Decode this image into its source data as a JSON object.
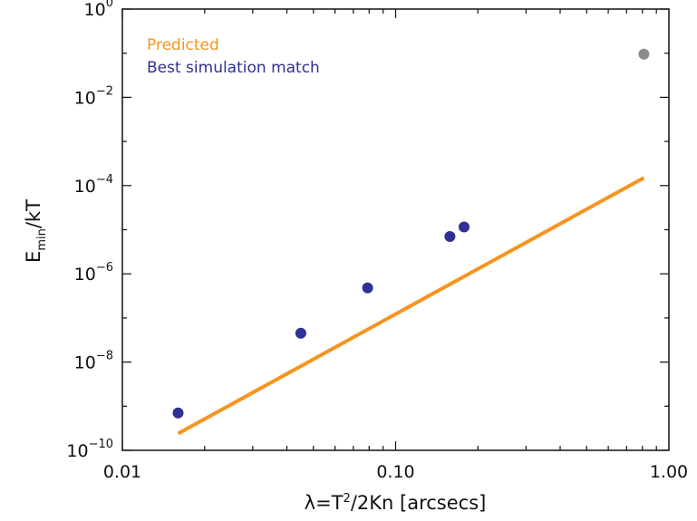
{
  "chart_data": {
    "type": "scatter",
    "x_scale": "log",
    "y_scale": "log",
    "xlim": [
      0.01,
      1.0
    ],
    "ylim": [
      1e-10,
      1.0
    ],
    "x_ticks": [
      {
        "value": 0.01,
        "label": "0.01"
      },
      {
        "value": 0.1,
        "label": "0.10"
      },
      {
        "value": 1.0,
        "label": "1.00"
      }
    ],
    "y_ticks": [
      {
        "value": 1e-10,
        "base": "10",
        "exp": "−10"
      },
      {
        "value": 1e-08,
        "base": "10",
        "exp": "−8"
      },
      {
        "value": 1e-06,
        "base": "10",
        "exp": "−6"
      },
      {
        "value": 0.0001,
        "base": "10",
        "exp": "−4"
      },
      {
        "value": 0.01,
        "base": "10",
        "exp": "−2"
      },
      {
        "value": 1,
        "base": "10",
        "exp": "0"
      }
    ],
    "xlabel": {
      "main": "λ=T",
      "sup": "2",
      "rest": "/2Kn [arcsecs]"
    },
    "ylabel": {
      "main": "E",
      "sub": "min",
      "rest": "/kT"
    },
    "legend": {
      "position": "top-left",
      "entries": [
        {
          "label": "Predicted",
          "color": "#f7941d"
        },
        {
          "label": "Best simulation match",
          "color": "#2e3192"
        }
      ]
    },
    "series": [
      {
        "name": "Predicted",
        "kind": "line",
        "color": "#f7941d",
        "points": [
          [
            0.016,
            2.4e-10
          ],
          [
            0.81,
            0.00015
          ]
        ]
      },
      {
        "name": "Best simulation match",
        "kind": "points",
        "color": "#2e3192",
        "points": [
          [
            0.016,
            7e-10
          ],
          [
            0.045,
            4.5e-08
          ],
          [
            0.079,
            4.8e-07
          ],
          [
            0.158,
            7e-06
          ],
          [
            0.178,
            1.15e-05
          ]
        ]
      },
      {
        "kind": "points",
        "color": "#8c8c8c",
        "points": [
          [
            0.81,
            0.095
          ]
        ]
      }
    ],
    "grid": false
  }
}
